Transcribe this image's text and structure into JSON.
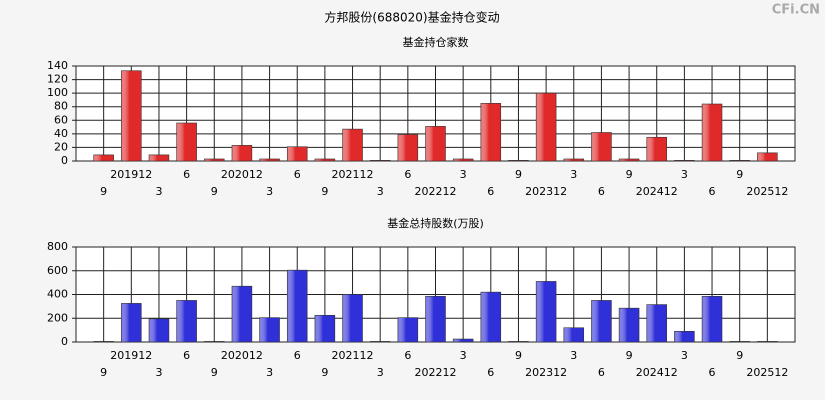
{
  "title": "方邦股份(688020)基金持仓变动",
  "watermark": "CFi.CN",
  "chart_data": [
    {
      "type": "bar",
      "title": "基金持仓家数",
      "categories": [
        "9",
        "201912",
        "3",
        "6",
        "9",
        "202012",
        "3",
        "6",
        "9",
        "202112",
        "3",
        "6",
        "202212",
        "3",
        "6",
        "9",
        "202312",
        "3",
        "6",
        "9",
        "202412",
        "3",
        "6",
        "9",
        "202512"
      ],
      "values": [
        9,
        133,
        9,
        56,
        3,
        23,
        3,
        21,
        3,
        47,
        1,
        39,
        51,
        3,
        85,
        1,
        100,
        3,
        42,
        3,
        35,
        1,
        84,
        1,
        12
      ],
      "color": "#e02a2a",
      "ylim": [
        0,
        140
      ],
      "yticks": [
        0,
        20,
        40,
        60,
        80,
        100,
        120,
        140
      ],
      "grid": true
    },
    {
      "type": "bar",
      "title": "基金总持股数(万股)",
      "categories": [
        "9",
        "201912",
        "3",
        "6",
        "9",
        "202012",
        "3",
        "6",
        "9",
        "202112",
        "3",
        "6",
        "202212",
        "3",
        "6",
        "9",
        "202312",
        "3",
        "6",
        "9",
        "202412",
        "3",
        "6",
        "9",
        "202512"
      ],
      "values": [
        5,
        325,
        195,
        350,
        5,
        470,
        205,
        605,
        225,
        400,
        5,
        205,
        385,
        25,
        420,
        5,
        510,
        120,
        350,
        285,
        315,
        90,
        385,
        5,
        5
      ],
      "color": "#3030d8",
      "ylim": [
        0,
        800
      ],
      "yticks": [
        0,
        200,
        400,
        600,
        800
      ],
      "grid": true
    }
  ]
}
